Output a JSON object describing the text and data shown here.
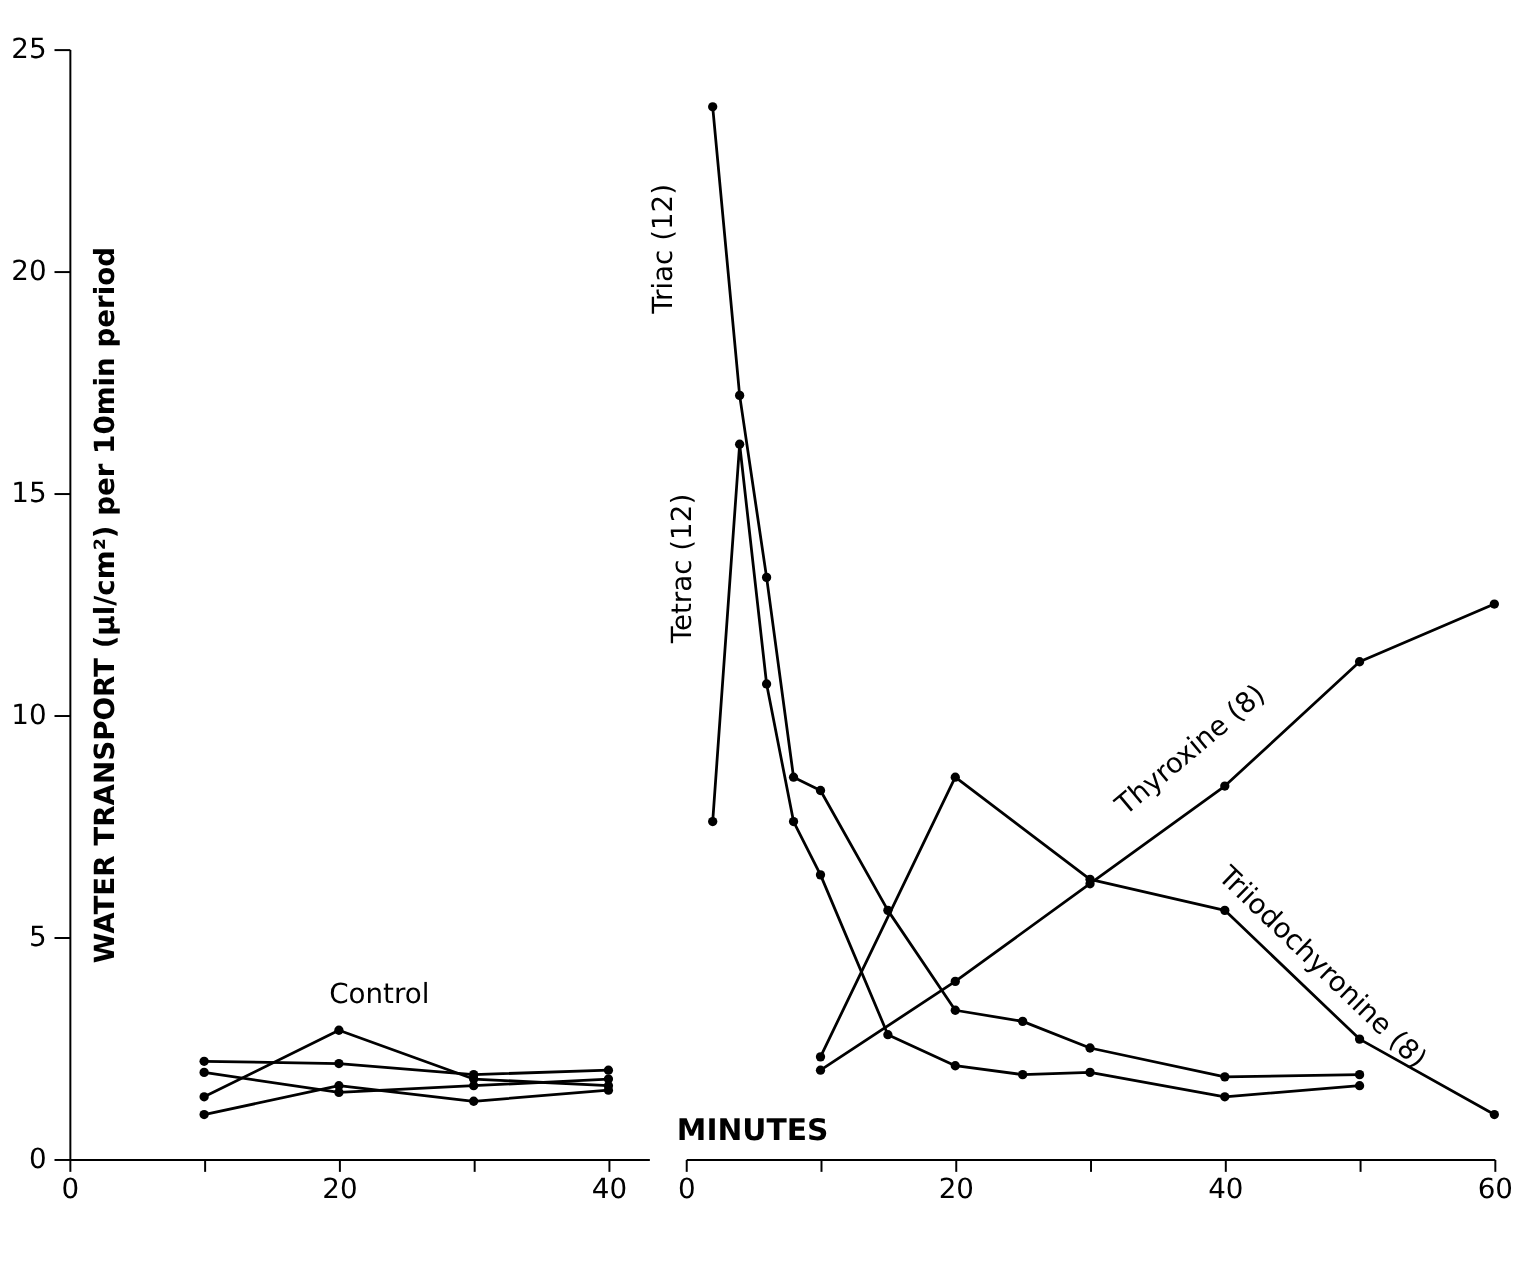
{
  "chart_data": [
    {
      "type": "line",
      "ylabel": "WATER TRANSPORT (µl/cm²) per 10min period",
      "xlim": [
        0,
        43
      ],
      "ylim": [
        0,
        25
      ],
      "xticks": [
        0,
        {
          "value": 10,
          "label": null
        },
        20,
        {
          "value": 30,
          "label": null
        },
        40
      ],
      "yticks": [
        0,
        5,
        10,
        15,
        20,
        25
      ],
      "x": [
        10,
        20,
        30,
        40
      ],
      "grid": false,
      "marker": "circle",
      "line_style": "solid",
      "series": [
        {
          "name": "Control",
          "color": "#000000",
          "values": [
            2.2,
            2.15,
            1.9,
            2.0
          ]
        },
        {
          "color": "#000000",
          "values": [
            1.95,
            1.5,
            1.65,
            1.8
          ]
        },
        {
          "color": "#000000",
          "values": [
            1.4,
            2.9,
            1.8,
            1.65
          ]
        },
        {
          "color": "#000000",
          "values": [
            1.0,
            1.65,
            1.3,
            1.55
          ]
        }
      ]
    },
    {
      "type": "line",
      "xlabel": "MINUTES",
      "xlim": [
        0,
        60
      ],
      "ylim": [
        0,
        25
      ],
      "tick_labels": "x",
      "xticks": [
        0,
        {
          "value": 10,
          "label": null
        },
        20,
        {
          "value": 30,
          "label": null
        },
        40,
        {
          "value": 50,
          "label": null
        },
        60
      ],
      "grid": false,
      "marker": "circle",
      "line_style": "solid",
      "series": [
        {
          "name": "Triac (12)",
          "color": "#000000",
          "x": [
            2,
            4,
            6,
            8,
            10,
            15,
            20,
            25,
            30,
            40,
            50
          ],
          "values": [
            23.7,
            17.2,
            13.1,
            8.6,
            8.3,
            5.6,
            3.35,
            3.1,
            2.5,
            1.85,
            1.9
          ]
        },
        {
          "name": "Tetrac (12)",
          "color": "#000000",
          "x": [
            2,
            4,
            6,
            8,
            10,
            15,
            20,
            25,
            30,
            40,
            50
          ],
          "values": [
            7.6,
            16.1,
            10.7,
            7.6,
            6.4,
            2.8,
            2.1,
            1.9,
            1.95,
            1.4,
            1.65
          ]
        },
        {
          "name": "Thyroxine (8)",
          "color": "#000000",
          "x": [
            10,
            20,
            30,
            40,
            50,
            60
          ],
          "values": [
            2.0,
            4.0,
            6.2,
            8.4,
            11.2,
            12.5
          ]
        },
        {
          "name": "Triiodochyronine (8)",
          "color": "#000000",
          "x": [
            10,
            20,
            30,
            40,
            50,
            60
          ],
          "values": [
            2.3,
            8.6,
            6.3,
            5.6,
            2.7,
            1.0
          ]
        }
      ]
    }
  ]
}
